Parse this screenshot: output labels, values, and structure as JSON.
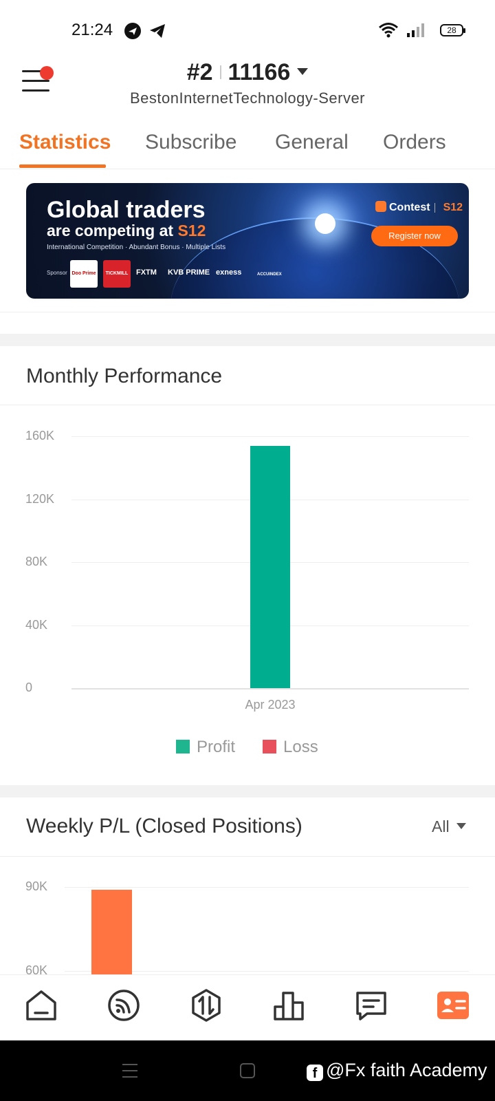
{
  "status_bar": {
    "time": "21:24",
    "battery": "28",
    "icons": [
      "send-icon",
      "telegram-icon",
      "wifi-icon",
      "signal-icon",
      "battery-icon"
    ]
  },
  "header": {
    "account_rank": "#2",
    "account_id": "11166",
    "server": "BestonInternetTechnology-Server"
  },
  "tabs": [
    {
      "label": "Statistics",
      "active": true
    },
    {
      "label": "Subscribe",
      "active": false
    },
    {
      "label": "General",
      "active": false
    },
    {
      "label": "Orders",
      "active": false
    }
  ],
  "banner": {
    "title_line1": "Global traders",
    "title_line2": "are competing at ",
    "title_highlight": "S12",
    "subtitle": "International Competition · Abundant Bonus · Multiple Lists",
    "sponsor_label": "Sponsor",
    "sponsors": [
      "Doo Prime",
      "TICKMILL",
      "FXTM",
      "KVB PRIME",
      "exness",
      "ACCUINDEX"
    ],
    "contest_label": "Contest",
    "contest_tag": "S12",
    "register_label": "Register now"
  },
  "monthly_performance": {
    "title": "Monthly Performance",
    "chart_data": {
      "type": "bar",
      "categories": [
        "Apr 2023"
      ],
      "series": [
        {
          "name": "Profit",
          "values": [
            154000
          ],
          "color": "#00ad8e"
        },
        {
          "name": "Loss",
          "values": [
            0
          ],
          "color": "#e8505b"
        }
      ],
      "y_ticks": [
        "160K",
        "120K",
        "80K",
        "40K",
        "0"
      ],
      "ylim": [
        0,
        160000
      ],
      "grid": true,
      "legend": "bottom"
    }
  },
  "weekly_pl": {
    "title": "Weekly P/L (Closed Positions)",
    "filter_label": "All",
    "chart_data": {
      "type": "bar",
      "y_ticks": [
        "90K",
        "60K"
      ],
      "series": [
        {
          "values": [
            89000
          ],
          "color": "#ff7440"
        }
      ],
      "grid": true
    }
  },
  "bottom_nav": {
    "items": [
      "home-icon",
      "feed-icon",
      "trade-icon",
      "chart-icon",
      "message-icon",
      "profile-icon"
    ],
    "active": "profile-icon",
    "accent": "#ff7440"
  },
  "watermark": "@Fx faith Academy"
}
